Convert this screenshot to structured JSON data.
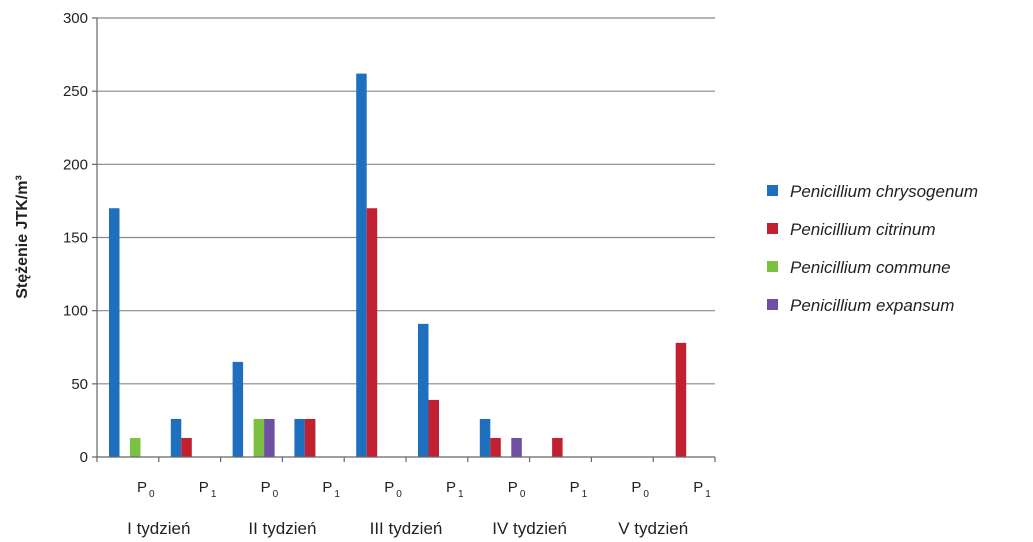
{
  "chart_data": {
    "type": "bar",
    "ylabel": "Stężenie JTK/m³",
    "ylim": [
      0,
      300
    ],
    "yticks": [
      0,
      50,
      100,
      150,
      200,
      250,
      300
    ],
    "grid": true,
    "legend_position": "right",
    "groups": [
      {
        "week": "I tydzień",
        "phase": "P",
        "sub": "0"
      },
      {
        "week": "I tydzień",
        "phase": "P",
        "sub": "1"
      },
      {
        "week": "II tydzień",
        "phase": "P",
        "sub": "0"
      },
      {
        "week": "II tydzień",
        "phase": "P",
        "sub": "1"
      },
      {
        "week": "III tydzień",
        "phase": "P",
        "sub": "0"
      },
      {
        "week": "III tydzień",
        "phase": "P",
        "sub": "1"
      },
      {
        "week": "IV tydzień",
        "phase": "P",
        "sub": "0"
      },
      {
        "week": "IV tydzień",
        "phase": "P",
        "sub": "1"
      },
      {
        "week": "V tydzień",
        "phase": "P",
        "sub": "0"
      },
      {
        "week": "V tydzień",
        "phase": "P",
        "sub": "1"
      }
    ],
    "weeks": [
      "I tydzień",
      "II tydzień",
      "III tydzień",
      "IV tydzień",
      "V tydzień"
    ],
    "series": [
      {
        "name": "Penicillium chrysogenum",
        "color": "#1f6fbf",
        "values": [
          170,
          26,
          65,
          26,
          262,
          91,
          26,
          0,
          0,
          0
        ]
      },
      {
        "name": "Penicillium citrinum",
        "color": "#c0202f",
        "values": [
          0,
          13,
          0,
          26,
          170,
          39,
          13,
          13,
          0,
          78
        ]
      },
      {
        "name": "Penicillium commune",
        "color": "#7dc142",
        "values": [
          13,
          0,
          26,
          0,
          0,
          0,
          0,
          0,
          0,
          0
        ]
      },
      {
        "name": "Penicillium expansum",
        "color": "#6e4fa3",
        "values": [
          0,
          0,
          26,
          0,
          0,
          0,
          13,
          0,
          0,
          0
        ]
      }
    ]
  }
}
